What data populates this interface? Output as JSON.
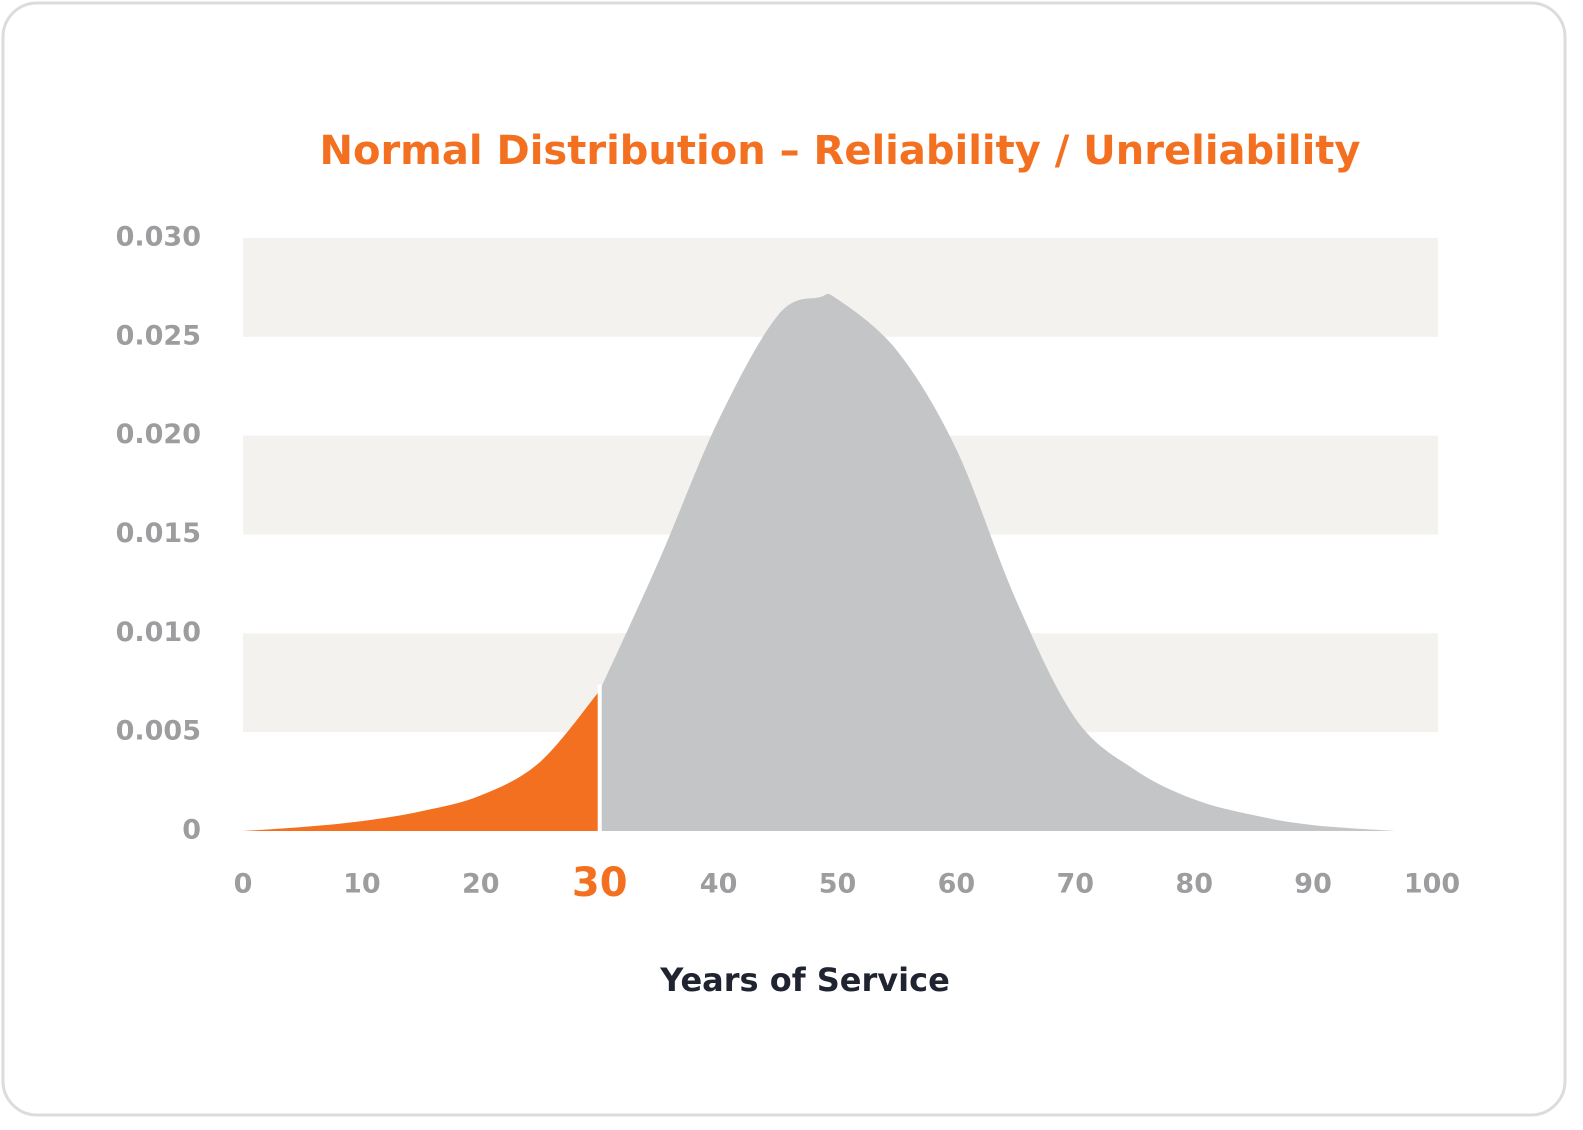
{
  "chart_data": {
    "type": "area",
    "title": "Normal Distribution – Reliability / Unreliability",
    "x_label": "Years of Service",
    "x": [
      0,
      5,
      10,
      15,
      20,
      25,
      30,
      35,
      40,
      45,
      48.5,
      50,
      55,
      60,
      65,
      70,
      75,
      80,
      85,
      90,
      97
    ],
    "values": [
      0,
      0.0002,
      0.0005,
      0.001,
      0.0018,
      0.0035,
      0.0071,
      0.0137,
      0.0208,
      0.0261,
      0.027,
      0.0269,
      0.0243,
      0.0193,
      0.0117,
      0.0057,
      0.0031,
      0.0016,
      0.0008,
      0.0003,
      0
    ],
    "split_x": 30,
    "color_below": "#f37021",
    "color_above": "#c4c5c7",
    "xlim": [
      0,
      100
    ],
    "xticks": [
      0,
      10,
      20,
      30,
      40,
      50,
      60,
      70,
      80,
      90,
      100
    ],
    "ylim": [
      0,
      0.03
    ],
    "yticks": [
      {
        "value": 0,
        "label": "0"
      },
      {
        "value": 0.005,
        "label": "0.005"
      },
      {
        "value": 0.01,
        "label": "0.010"
      },
      {
        "value": 0.015,
        "label": "0.015"
      },
      {
        "value": 0.02,
        "label": "0.020"
      },
      {
        "value": 0.025,
        "label": "0.025"
      },
      {
        "value": 0.03,
        "label": "0.030"
      }
    ],
    "banded_grid": true
  }
}
